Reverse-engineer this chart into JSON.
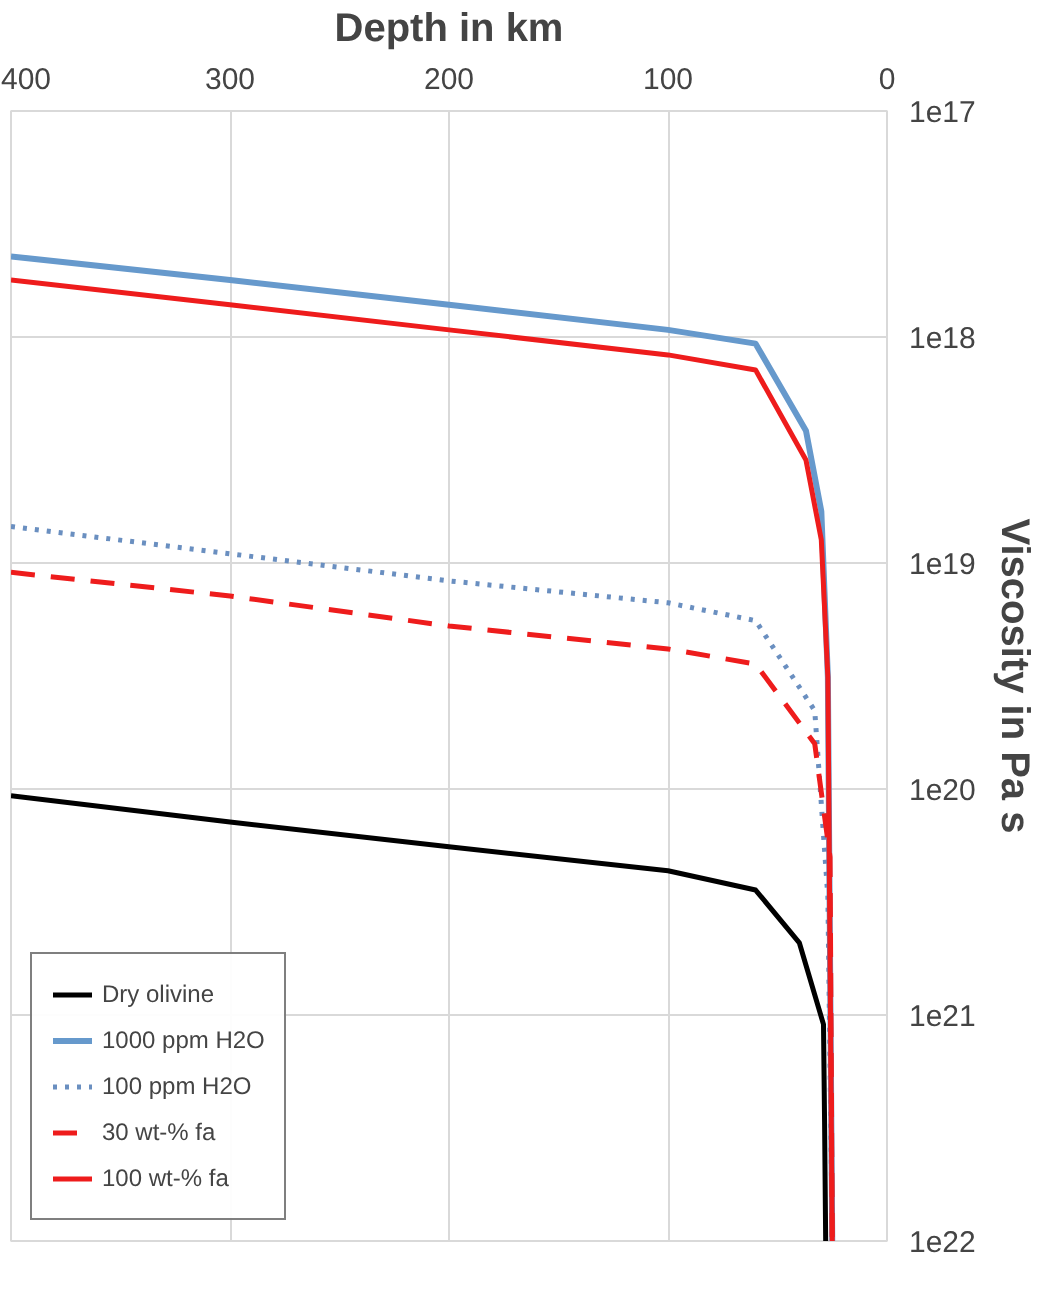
{
  "chart_data": {
    "type": "line",
    "xlabel": "Depth in km",
    "ylabel": "Viscosity in Pa s",
    "log": "y",
    "xlim": [
      400,
      0
    ],
    "xticks": [
      400,
      300,
      200,
      100,
      0
    ],
    "ylim": [
      1e+22,
      1e+17
    ],
    "yticks": [
      {
        "value": 1e+17,
        "label": "1e17"
      },
      {
        "value": 1e+18,
        "label": "1e18"
      },
      {
        "value": 1e+19,
        "label": "1e19"
      },
      {
        "value": 1e+20,
        "label": "1e20"
      },
      {
        "value": 1e+21,
        "label": "1e21"
      },
      {
        "value": 1e+22,
        "label": "1e22"
      }
    ],
    "grid": true,
    "legend": "bottom left",
    "series": [
      {
        "name": "Dry olivine",
        "color": "#000000",
        "line_style": "solid",
        "x": [
          400,
          300,
          200,
          100,
          60,
          40,
          29,
          28.5,
          28
        ],
        "values": [
          1.07e+20,
          1.4e+20,
          1.8e+20,
          2.3e+20,
          2.8e+20,
          4.8e+20,
          1.1e+21,
          3e+21,
          1e+22
        ]
      },
      {
        "name": "1000 ppm H2O",
        "color": "#6699cc",
        "line_style": "solid",
        "x": [
          400,
          300,
          200,
          100,
          60,
          37,
          30,
          27,
          25
        ],
        "values": [
          4.4e+17,
          5.6e+17,
          7.2e+17,
          9.3e+17,
          1.07e+18,
          2.6e+18,
          5.9e+18,
          3.2e+19,
          1e+22
        ]
      },
      {
        "name": "100 ppm H2O",
        "color": "#6a8fc0",
        "line_style": "dotted",
        "x": [
          400,
          300,
          200,
          100,
          60,
          33,
          27,
          25
        ],
        "values": [
          6.9e+18,
          9.1e+18,
          1.2e+19,
          1.5e+19,
          1.8e+19,
          4.5e+19,
          3e+20,
          1e+22
        ]
      },
      {
        "name": "30 wt-% fa",
        "color": "#ee1c1c",
        "line_style": "dashed",
        "x": [
          400,
          300,
          200,
          100,
          60,
          33,
          26,
          25
        ],
        "values": [
          1.1e+19,
          1.4e+19,
          1.9e+19,
          2.4e+19,
          2.8e+19,
          6.3e+19,
          2e+20,
          1e+22
        ]
      },
      {
        "name": "100 wt-% fa",
        "color": "#ee1c1c",
        "line_style": "solid",
        "x": [
          400,
          300,
          200,
          100,
          60,
          37,
          30,
          27,
          25
        ],
        "values": [
          5.6e+17,
          7.2e+17,
          9.3e+17,
          1.2e+18,
          1.4e+18,
          3.5e+18,
          7.9e+18,
          3.2e+19,
          1e+22
        ]
      }
    ]
  }
}
